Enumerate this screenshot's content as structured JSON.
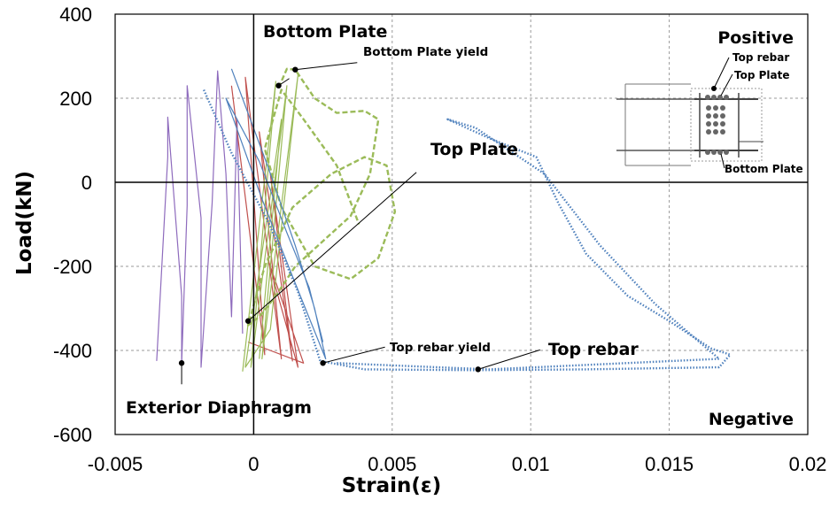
{
  "chart_data": {
    "type": "line",
    "title": "",
    "xlabel": "Strain(ε)",
    "ylabel": "Load(kN)",
    "xlim": [
      -0.005,
      0.02
    ],
    "ylim": [
      -600,
      400
    ],
    "x_ticks": [
      -0.005,
      0,
      0.005,
      0.01,
      0.015,
      0.02
    ],
    "x_tick_labels": [
      "-0.005",
      "0",
      "0.005",
      "0.01",
      "0.015",
      "0.02"
    ],
    "y_ticks": [
      -600,
      -400,
      -200,
      0,
      200,
      400
    ],
    "y_tick_labels": [
      "-600",
      "-400",
      "-200",
      "0",
      "200",
      "400"
    ],
    "grid": "dashed",
    "legend": "none",
    "series": [
      {
        "color": "#8e6bbd",
        "style": "solid",
        "points": [
          [
            -0.0035,
            -425
          ],
          [
            -0.0031,
            60
          ],
          [
            -0.0031,
            155
          ],
          [
            -0.0026,
            -270
          ],
          [
            -0.0026,
            -430
          ],
          [
            -0.0024,
            -55
          ],
          [
            -0.0024,
            230
          ],
          [
            -0.0019,
            -85
          ],
          [
            -0.0019,
            -440
          ],
          [
            -0.0015,
            -50
          ],
          [
            -0.0013,
            265
          ],
          [
            -0.001,
            20
          ],
          [
            -0.0008,
            -320
          ],
          [
            -0.0006,
            150
          ],
          [
            -0.0004,
            -360
          ]
        ]
      },
      {
        "color": "#c0504d",
        "style": "solid",
        "points": [
          [
            -0.0008,
            230
          ],
          [
            0.0004,
            -410
          ],
          [
            -0.0003,
            250
          ],
          [
            0.001,
            -420
          ],
          [
            0.0002,
            120
          ],
          [
            0.0014,
            -425
          ],
          [
            0.0006,
            20
          ],
          [
            0.0016,
            -440
          ],
          [
            0.0005,
            -180
          ],
          [
            0.0018,
            -430
          ],
          [
            -0.0002,
            -380
          ]
        ]
      },
      {
        "color": "#9bbb59",
        "style": "solid",
        "points": [
          [
            -0.0004,
            -450
          ],
          [
            0.0008,
            240
          ],
          [
            -0.0001,
            -440
          ],
          [
            0.0012,
            230
          ],
          [
            0.0003,
            -420
          ],
          [
            0.0016,
            255
          ],
          [
            0.0006,
            -350
          ],
          [
            -0.0003,
            -440
          ],
          [
            0.001,
            150
          ],
          [
            0.0002,
            -420
          ]
        ]
      },
      {
        "color": "#9bbb59",
        "style": "dashed",
        "points": [
          [
            0.0009,
            225
          ],
          [
            0.0012,
            270
          ],
          [
            0.0015,
            268
          ],
          [
            0.0022,
            200
          ],
          [
            0.003,
            165
          ],
          [
            0.004,
            170
          ],
          [
            0.0045,
            150
          ],
          [
            0.0042,
            20
          ],
          [
            0.0035,
            -80
          ],
          [
            0.0025,
            -140
          ],
          [
            0.0015,
            -200
          ],
          [
            0.0008,
            -270
          ],
          [
            0.0002,
            -320
          ],
          [
            -0.0002,
            -340
          ],
          [
            0.0004,
            -200
          ],
          [
            0.0014,
            -60
          ],
          [
            0.0028,
            20
          ],
          [
            0.004,
            60
          ],
          [
            0.0048,
            40
          ],
          [
            0.0051,
            -70
          ],
          [
            0.0045,
            -180
          ],
          [
            0.0035,
            -230
          ],
          [
            0.0022,
            -200
          ],
          [
            0.001,
            -60
          ],
          [
            0.0004,
            80
          ],
          [
            0.001,
            220
          ],
          [
            0.0018,
            150
          ],
          [
            0.003,
            40
          ],
          [
            0.0038,
            -100
          ]
        ]
      },
      {
        "color": "#4f81bd",
        "style": "solid",
        "points": [
          [
            -0.0008,
            270
          ],
          [
            0.0005,
            40
          ],
          [
            0.0015,
            -150
          ],
          [
            0.0022,
            -300
          ],
          [
            0.0026,
            -420
          ],
          [
            0.0015,
            -240
          ],
          [
            0.0003,
            -40
          ],
          [
            -0.001,
            200
          ],
          [
            0.0002,
            50
          ],
          [
            0.0012,
            -120
          ],
          [
            0.002,
            -250
          ],
          [
            0.0025,
            -380
          ]
        ]
      },
      {
        "color": "#4f81bd",
        "style": "dotted",
        "points": [
          [
            -0.0018,
            220
          ],
          [
            -0.0008,
            70
          ],
          [
            0.0005,
            -90
          ],
          [
            0.0016,
            -260
          ],
          [
            0.0024,
            -425
          ],
          [
            0.004,
            -445
          ],
          [
            0.008,
            -447
          ],
          [
            0.012,
            -445
          ],
          [
            0.0168,
            -440
          ],
          [
            0.0172,
            -410
          ],
          [
            0.0165,
            -395
          ],
          [
            0.015,
            -330
          ],
          [
            0.0135,
            -270
          ],
          [
            0.012,
            -170
          ],
          [
            0.011,
            -50
          ],
          [
            0.0102,
            60
          ],
          [
            0.0085,
            105
          ],
          [
            0.007,
            150
          ],
          [
            0.008,
            130
          ],
          [
            0.0105,
            20
          ],
          [
            0.0125,
            -150
          ],
          [
            0.0145,
            -290
          ],
          [
            0.0168,
            -420
          ],
          [
            0.0085,
            -445
          ],
          [
            0.003,
            -430
          ]
        ]
      }
    ],
    "annotations": [
      {
        "text": "Bottom Plate",
        "x": 0.0009,
        "y": 230,
        "size": "large"
      },
      {
        "text": "Bottom Plate yield",
        "x": 0.0015,
        "y": 268,
        "size": "small"
      },
      {
        "text": "Top Plate",
        "x": -0.0002,
        "y": -330,
        "size": "large"
      },
      {
        "text": "Top rebar yield",
        "x": 0.0025,
        "y": -430,
        "size": "small"
      },
      {
        "text": "Top rebar",
        "x": 0.0081,
        "y": -445,
        "size": "large"
      },
      {
        "text": "Exterior Diaphragm",
        "x": -0.0026,
        "y": -430,
        "size": "large"
      }
    ],
    "corner_labels": {
      "positive": "Positive",
      "negative": "Negative"
    },
    "inset_labels": {
      "top_rebar": "Top rebar",
      "top_plate": "Top Plate",
      "bottom_plate": "Bottom Plate"
    }
  }
}
